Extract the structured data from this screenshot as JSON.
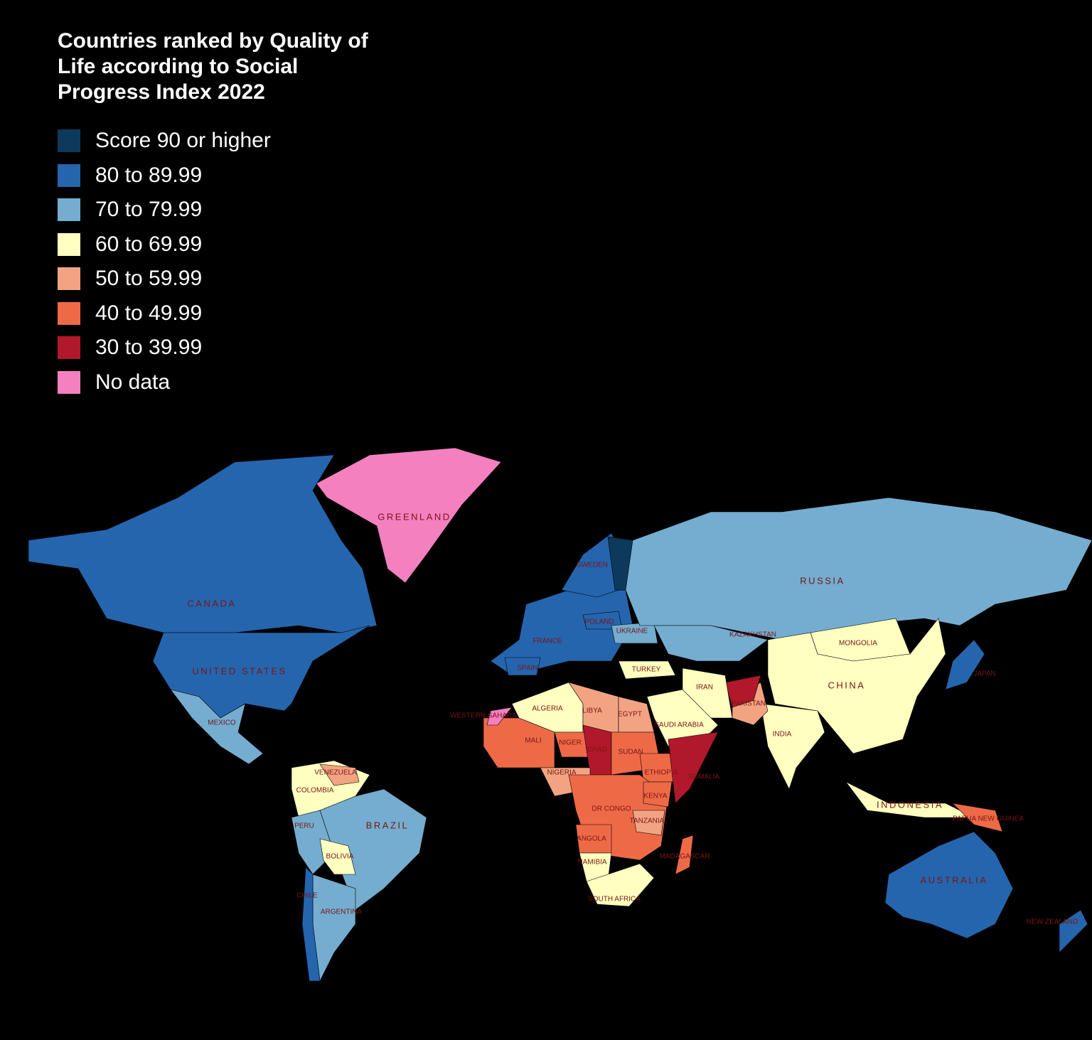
{
  "title": "Countries ranked by Quality of Life according to Social Progress Index 2022",
  "legend": [
    {
      "label": "Score 90 or higher",
      "color": "#0d3a5c"
    },
    {
      "label": "80 to 89.99",
      "color": "#2565ad"
    },
    {
      "label": "70 to 79.99",
      "color": "#74adcf"
    },
    {
      "label": "60 to 69.99",
      "color": "#ffffc0"
    },
    {
      "label": "50 to 59.99",
      "color": "#f2a482"
    },
    {
      "label": "40 to 49.99",
      "color": "#ee6a47"
    },
    {
      "label": "30 to 39.99",
      "color": "#b2182b"
    },
    {
      "label": "No data",
      "color": "#f480c0"
    }
  ],
  "map": {
    "countries": [
      {
        "name": "CANADA",
        "color": "#2565ad"
      },
      {
        "name": "UNITED STATES",
        "color": "#2565ad"
      },
      {
        "name": "GREENLAND",
        "color": "#f480c0"
      },
      {
        "name": "MEXICO",
        "color": "#74adcf"
      },
      {
        "name": "COLOMBIA",
        "color": "#ffffc0"
      },
      {
        "name": "VENEZUELA",
        "color": "#f2a482"
      },
      {
        "name": "BRAZIL",
        "color": "#74adcf"
      },
      {
        "name": "PERU",
        "color": "#74adcf"
      },
      {
        "name": "BOLIVIA",
        "color": "#ffffc0"
      },
      {
        "name": "ARGENTINA",
        "color": "#74adcf"
      },
      {
        "name": "CHILE",
        "color": "#2565ad"
      },
      {
        "name": "FRANCE",
        "color": "#2565ad"
      },
      {
        "name": "SPAIN",
        "color": "#2565ad"
      },
      {
        "name": "POLAND",
        "color": "#2565ad"
      },
      {
        "name": "UKRAINE",
        "color": "#74adcf"
      },
      {
        "name": "SWEDEN",
        "color": "#2565ad"
      },
      {
        "color": "#0d3a5c"
      },
      {
        "name": "RUSSIA",
        "color": "#74adcf"
      },
      {
        "name": "KAZAKHSTAN",
        "color": "#74adcf"
      },
      {
        "name": "MONGOLIA",
        "color": "#ffffc0"
      },
      {
        "name": "CHINA",
        "color": "#ffffc0"
      },
      {
        "name": "INDIA",
        "color": "#ffffc0"
      },
      {
        "name": "PAKISTAN",
        "color": "#f2a482"
      },
      {
        "color": "#b2182b"
      },
      {
        "name": "IRAN",
        "color": "#ffffc0"
      },
      {
        "name": "TURKEY",
        "color": "#ffffc0"
      },
      {
        "name": "SAUDI ARABIA",
        "color": "#ffffc0"
      },
      {
        "name": "JAPAN",
        "color": "#2565ad"
      },
      {
        "name": "INDONESIA",
        "color": "#ffffc0"
      },
      {
        "name": "PAPUA NEW GUINEA",
        "color": "#ee6a47"
      },
      {
        "name": "AUSTRALIA",
        "color": "#2565ad"
      },
      {
        "name": "NEW ZEALAND",
        "color": "#2565ad"
      },
      {
        "name": "ALGERIA",
        "color": "#ffffc0"
      },
      {
        "name": "LIBYA",
        "color": "#f2a482"
      },
      {
        "name": "EGYPT",
        "color": "#f2a482"
      },
      {
        "name": "MALI",
        "color": "#ee6a47"
      },
      {
        "name": "NIGER",
        "color": "#ee6a47"
      },
      {
        "name": "WESTERN SAHARA",
        "color": "#f480c0"
      },
      {
        "name": "CHAD",
        "color": "#b2182b"
      },
      {
        "name": "SUDAN",
        "color": "#ee6a47"
      },
      {
        "name": "ETHIOPIA",
        "color": "#ee6a47"
      },
      {
        "name": "SOMALIA",
        "color": "#b2182b"
      },
      {
        "name": "NIGERIA",
        "color": "#f2a482"
      },
      {
        "name": "DR CONGO",
        "color": "#ee6a47"
      },
      {
        "name": "KENYA",
        "color": "#ee6a47"
      },
      {
        "name": "TANZANIA",
        "color": "#f2a482"
      },
      {
        "name": "ANGOLA",
        "color": "#ee6a47"
      },
      {
        "name": "NAMIBIA",
        "color": "#ffffc0"
      },
      {
        "name": "SOUTH AFRICA",
        "color": "#ffffc0"
      },
      {
        "name": "MADAGASCAR",
        "color": "#ee6a47"
      }
    ]
  }
}
